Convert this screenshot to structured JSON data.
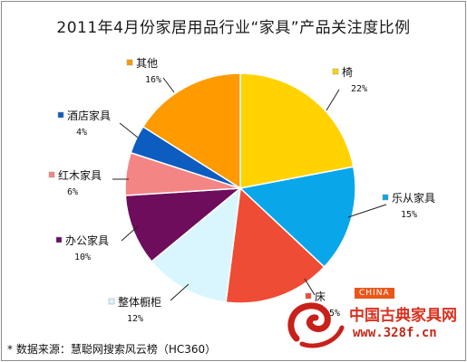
{
  "chart_data": {
    "type": "pie",
    "title": "2011年4月份家居用品行业“家具”产品关注度比例",
    "slices": [
      {
        "label": "椅",
        "value": 22,
        "value_label": "22%",
        "color": "#ffd200"
      },
      {
        "label": "乐从家具",
        "value": 15,
        "value_label": "15%",
        "color": "#0aa6ea"
      },
      {
        "label": "床",
        "value": 15,
        "value_label": "15%",
        "color": "#ee4c34"
      },
      {
        "label": "整体橱柜",
        "value": 12,
        "value_label": "12%",
        "color": "#d9f6ff"
      },
      {
        "label": "办公家具",
        "value": 10,
        "value_label": "10%",
        "color": "#6d0d5c"
      },
      {
        "label": "红木家具",
        "value": 6,
        "value_label": "6%",
        "color": "#f48585"
      },
      {
        "label": "酒店家具",
        "value": 4,
        "value_label": "4%",
        "color": "#0d5cc0"
      },
      {
        "label": "其他",
        "value": 16,
        "value_label": "16%",
        "color": "#ff9a00"
      }
    ],
    "legend": "none"
  },
  "source_note": "* 数据来源：慧聪网搜索风云榜（HC360）",
  "watermark": {
    "latin": "CHINA",
    "name": "中国古典家具网",
    "url": "www.328f.cn"
  }
}
